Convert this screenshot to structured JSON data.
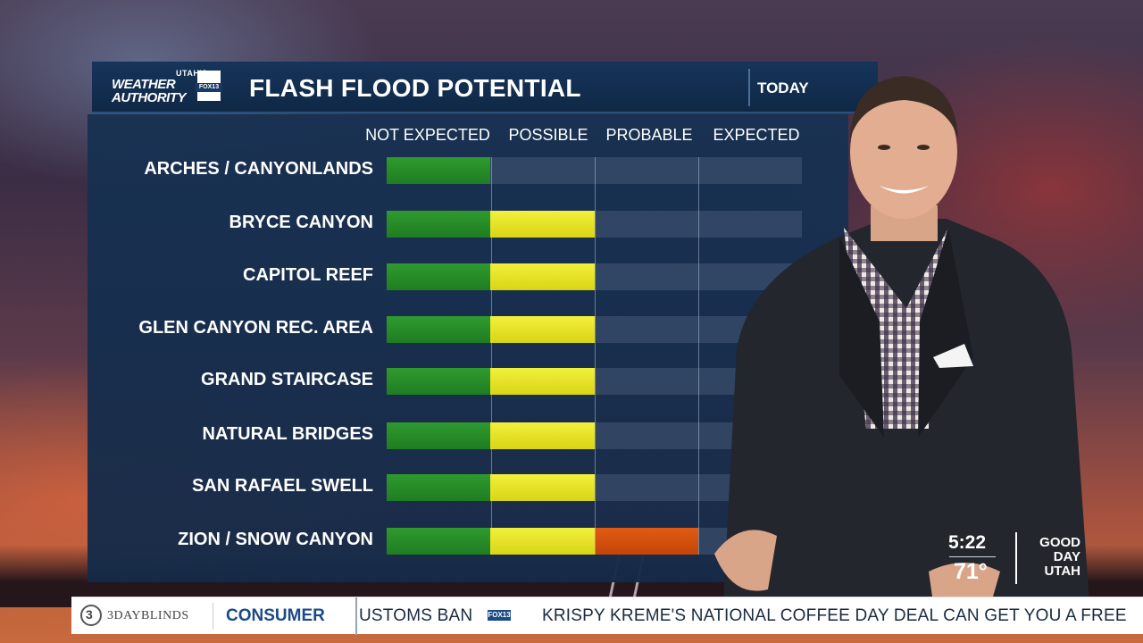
{
  "header": {
    "logo_utahs": "UTAH'S",
    "logo_weather": "WEATHER",
    "logo_authority": "AUTHORITY",
    "logo_fox": "FOX13",
    "title": "FLASH FLOOD POTENTIAL",
    "period": "TODAY"
  },
  "columns": [
    "NOT EXPECTED",
    "POSSIBLE",
    "PROBABLE",
    "EXPECTED"
  ],
  "rows": [
    {
      "label": "ARCHES / CANYONLANDS",
      "level": "NOT EXPECTED"
    },
    {
      "label": "BRYCE CANYON",
      "level": "POSSIBLE"
    },
    {
      "label": "CAPITOL REEF",
      "level": "POSSIBLE"
    },
    {
      "label": "GLEN CANYON REC. AREA",
      "level": "POSSIBLE"
    },
    {
      "label": "GRAND STAIRCASE",
      "level": "POSSIBLE"
    },
    {
      "label": "NATURAL BRIDGES",
      "level": "POSSIBLE"
    },
    {
      "label": "SAN RAFAEL SWELL",
      "level": "POSSIBLE"
    },
    {
      "label": "ZION / SNOW CANYON",
      "level": "PROBABLE"
    }
  ],
  "level_colors": {
    "NOT EXPECTED": "#2a8f2a",
    "POSSIBLE": "#e6e325",
    "PROBABLE": "#d64f0f"
  },
  "bug": {
    "time": "5:22",
    "temperature": "71°",
    "show_line1": "GOOD",
    "show_line2": "DAY",
    "show_line3": "UTAH"
  },
  "ticker": {
    "sponsor": "3DAYBLINDS",
    "category": "CONSUMER",
    "headline_1": "USTOMS BAN",
    "fox_label": "FOX13",
    "headline_2": "KRISPY KREME'S NATIONAL COFFEE DAY DEAL CAN GET YOU A FREE"
  }
}
